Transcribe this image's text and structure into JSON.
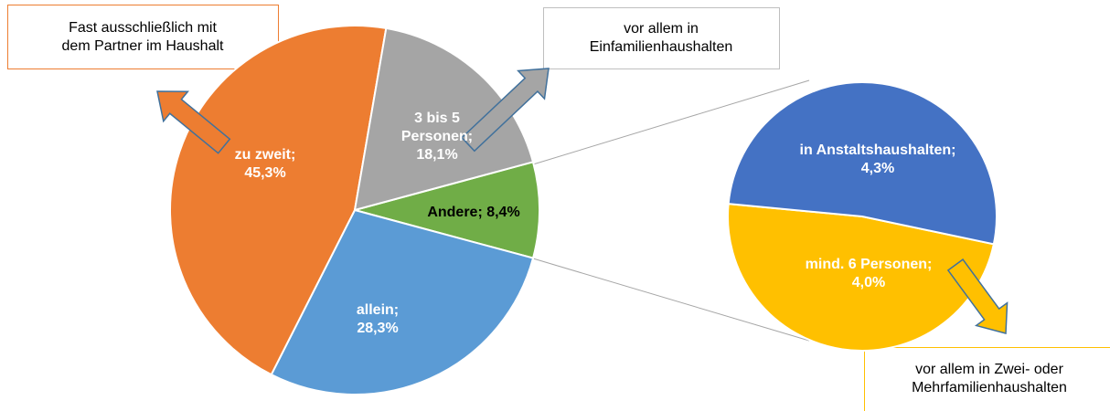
{
  "chart_data": [
    {
      "type": "pie",
      "categories": [
        "Andere",
        "allein",
        "zu zweit",
        "3 bis 5 Personen"
      ],
      "values": [
        8.4,
        28.3,
        45.3,
        18.1
      ],
      "value_labels": [
        [
          "Andere; 8,4%"
        ],
        [
          "allein;",
          "28,3%"
        ],
        [
          "zu zweit;",
          "45,3%"
        ],
        [
          "3 bis 5",
          "Personen;",
          "18,1%"
        ]
      ],
      "colors": [
        "#70ad47",
        "#5b9bd5",
        "#ed7d31",
        "#a5a5a5"
      ]
    },
    {
      "type": "pie",
      "categories": [
        "mind. 6 Personen",
        "in Anstaltshaushalten"
      ],
      "values": [
        4.0,
        4.3
      ],
      "value_labels": [
        [
          "mind. 6 Personen;",
          "4,0%"
        ],
        [
          "in Anstaltshaushalten;",
          "4,3%"
        ]
      ],
      "colors": [
        "#ffc000",
        "#4472c4"
      ]
    }
  ],
  "annotations": [
    [
      "Fast ausschließlich mit",
      "dem Partner im Haushalt"
    ],
    [
      "vor allem in",
      "Einfamilienhaushalten"
    ],
    [
      "vor allem in Zwei- oder",
      "Mehrfamilienhaushalten"
    ]
  ]
}
